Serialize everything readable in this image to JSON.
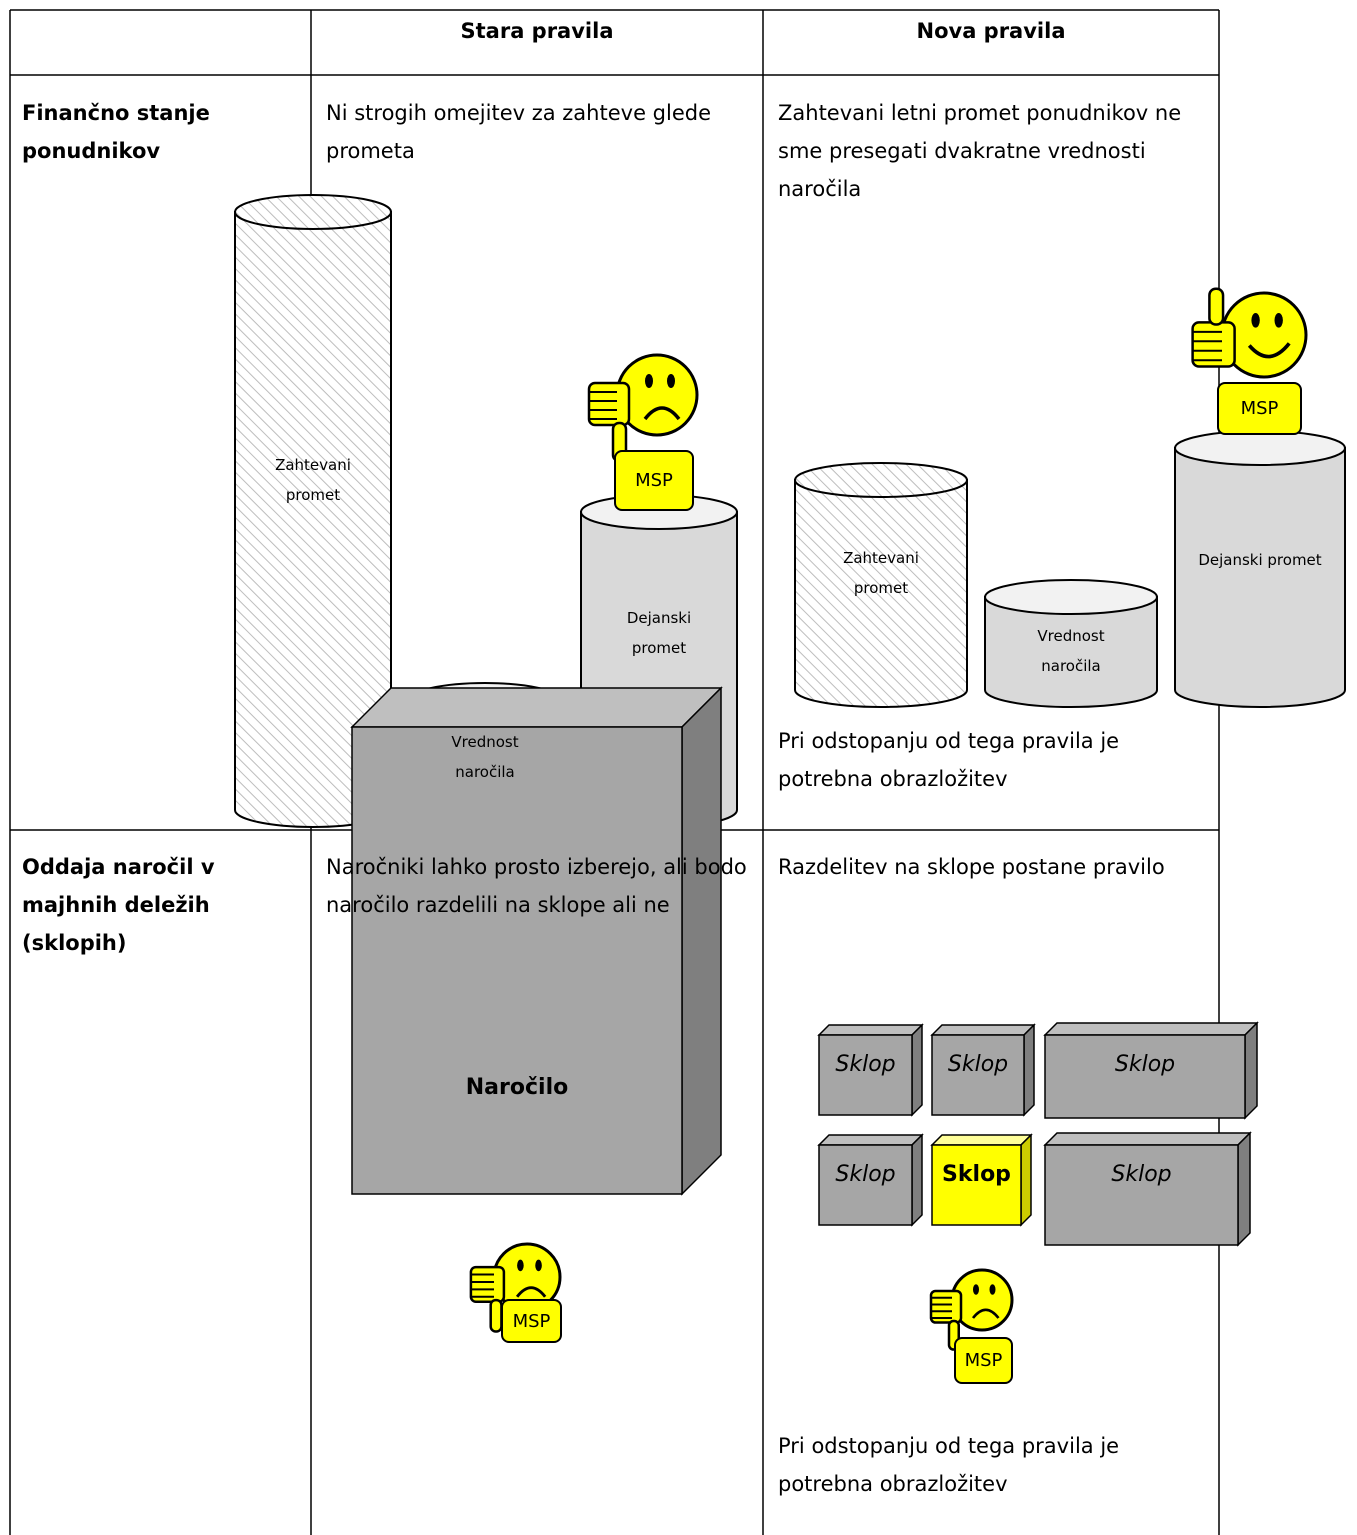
{
  "table": {
    "header": [
      "Stara pravila",
      "Nova pravila"
    ],
    "rows": [
      {
        "label": "Finančno stanje ponudnikov",
        "old": "Ni strogih omejitev za zahteve glede prometa",
        "new": "Zahtevani letni promet ponudnikov ne sme presegati dvakratne vrednosti naročila",
        "new_note": "Pri odstopanju od tega pravila je potrebna obrazložitev"
      },
      {
        "label": "Oddaja naročil v majhnih deležih (sklopih)",
        "old": "Naročniki lahko prosto izberejo, ali bodo naročilo razdelili na sklope ali ne",
        "new": "Razdelitev na sklope postane pravilo",
        "new_note": "Pri odstopanju od tega pravila je potrebna obrazložitev"
      }
    ]
  },
  "diagrams": {
    "required_turnover": "Zahtevani promet",
    "contract_value": "Vrednost naročila",
    "actual_turnover": "Dejanski promet",
    "sme": "MSP",
    "contract": "Naročilo",
    "lot": "Sklop"
  }
}
